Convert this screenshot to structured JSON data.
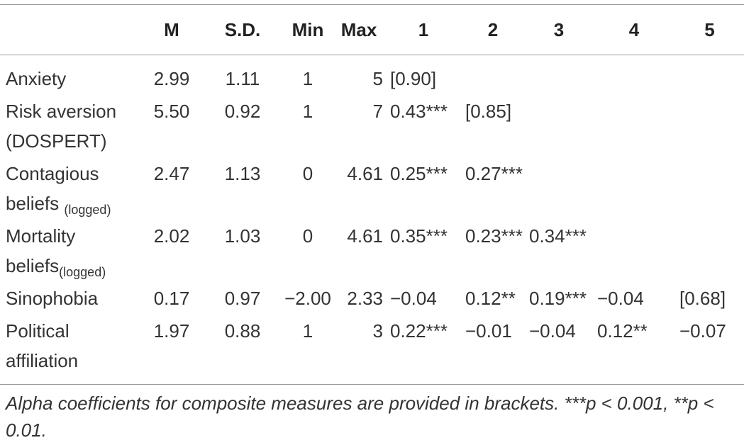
{
  "table": {
    "columns": [
      "M",
      "S.D.",
      "Min",
      "Max",
      "1",
      "2",
      "3",
      "4",
      "5"
    ],
    "rows": [
      {
        "label": "Anxiety",
        "sub": null,
        "cells": [
          "2.99",
          "1.11",
          "1",
          "5",
          "[0.90]",
          null,
          null,
          null,
          null
        ]
      },
      {
        "label": "Risk aversion (DOSPERT)",
        "sub": null,
        "cells": [
          "5.50",
          "0.92",
          "1",
          "7",
          "0.43***",
          "[0.85]",
          null,
          null,
          null
        ]
      },
      {
        "label": "Contagious beliefs ",
        "sub": "(logged)",
        "cells": [
          "2.47",
          "1.13",
          "0",
          "4.61",
          "0.25***",
          "0.27***",
          null,
          null,
          null
        ]
      },
      {
        "label": "Mortality beliefs",
        "sub": "(logged)",
        "cells": [
          "2.02",
          "1.03",
          "0",
          "4.61",
          "0.35***",
          "0.23***",
          "0.34***",
          null,
          null
        ]
      },
      {
        "label": "Sinophobia",
        "sub": null,
        "cells": [
          "0.17",
          "0.97",
          "−2.00",
          "2.33",
          "−0.04",
          "0.12**",
          "0.19***",
          "−0.04",
          "[0.68]"
        ]
      },
      {
        "label": "Political affiliation",
        "sub": null,
        "cells": [
          "1.97",
          "0.88",
          "1",
          "3",
          "0.22***",
          "−0.01",
          "−0.04",
          "0.12**",
          "−0.07"
        ]
      }
    ],
    "footnote": "Alpha coefficients for composite measures are provided in brackets. ***p < 0.001, **p < 0.01."
  }
}
